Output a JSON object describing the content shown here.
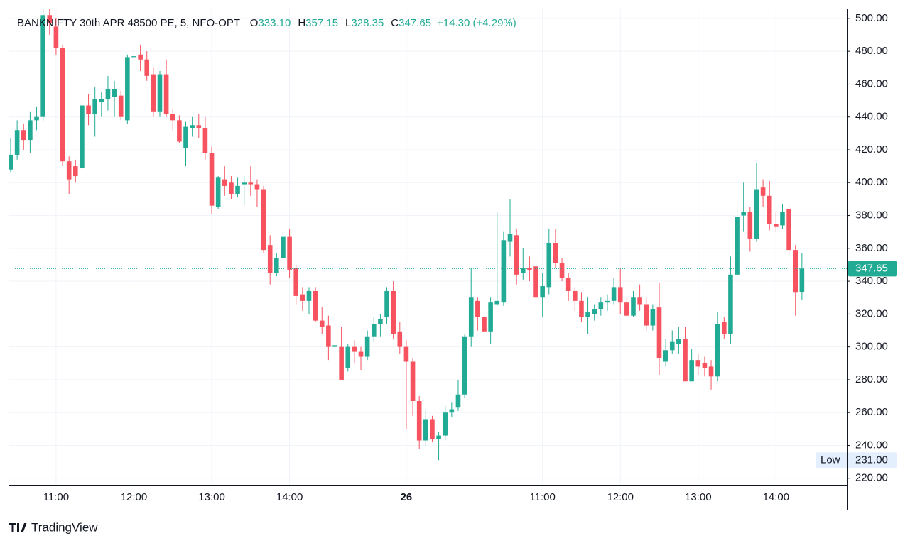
{
  "chart_data": {
    "type": "candlestick",
    "header": {
      "symbol": "BANKNIFTY 30th APR 48500 PE, 5, NFO-OPT",
      "ohlc": [
        {
          "key": "O",
          "value": "333.10"
        },
        {
          "key": "H",
          "value": "357.15"
        },
        {
          "key": "L",
          "value": "328.35"
        },
        {
          "key": "C",
          "value": "347.65"
        }
      ],
      "change": "+14.30 (+4.29%)"
    },
    "branding": "TradingView",
    "up_color": "#22ab94",
    "down_color": "#f7525f",
    "grid": true,
    "ylim": [
      216,
      506
    ],
    "yticks": [
      {
        "value": 220,
        "label": "220.00"
      },
      {
        "value": 240,
        "label": "240.00"
      },
      {
        "value": 260,
        "label": "260.00"
      },
      {
        "value": 280,
        "label": "280.00"
      },
      {
        "value": 300,
        "label": "300.00"
      },
      {
        "value": 320,
        "label": "320.00"
      },
      {
        "value": 340,
        "label": "340.00"
      },
      {
        "value": 360,
        "label": "360.00"
      },
      {
        "value": 380,
        "label": "380.00"
      },
      {
        "value": 400,
        "label": "400.00"
      },
      {
        "value": 420,
        "label": "420.00"
      },
      {
        "value": 440,
        "label": "440.00"
      },
      {
        "value": 460,
        "label": "460.00"
      },
      {
        "value": 480,
        "label": "480.00"
      },
      {
        "value": 500,
        "label": "500.00"
      }
    ],
    "last_price": {
      "value": 347.65,
      "label": "347.65"
    },
    "low_marker": {
      "name": "Low",
      "value": 231,
      "label": "231.00"
    },
    "categories": [
      null,
      null,
      null,
      null,
      null,
      null,
      null,
      "11:00",
      null,
      null,
      null,
      null,
      null,
      null,
      null,
      null,
      null,
      null,
      null,
      "12:00",
      null,
      null,
      null,
      null,
      null,
      null,
      null,
      null,
      null,
      null,
      null,
      "13:00",
      null,
      null,
      null,
      null,
      null,
      null,
      null,
      null,
      null,
      null,
      null,
      "14:00",
      null,
      null,
      null,
      null,
      null,
      null,
      null,
      null,
      null,
      null,
      null,
      null,
      null,
      null,
      null,
      null,
      null,
      "26",
      null,
      null,
      null,
      null,
      null,
      null,
      null,
      null,
      null,
      null,
      null,
      null,
      null,
      null,
      null,
      null,
      null,
      null,
      null,
      null,
      "11:00",
      null,
      null,
      null,
      null,
      null,
      null,
      null,
      null,
      null,
      null,
      null,
      "12:00",
      null,
      null,
      null,
      null,
      null,
      null,
      null,
      null,
      null,
      null,
      null,
      "13:00",
      null,
      null,
      null,
      null,
      null,
      null,
      null,
      null,
      null,
      null,
      null,
      "14:00",
      null,
      null,
      null,
      null
    ],
    "open": [
      408,
      417,
      432,
      426,
      438,
      440,
      502,
      495,
      482,
      413,
      410,
      409,
      447,
      442,
      449,
      451,
      452,
      453,
      438,
      476,
      478,
      475,
      466,
      443,
      466,
      442,
      438,
      421,
      433,
      435,
      433,
      418,
      385,
      402,
      400,
      393,
      399,
      400,
      399,
      396,
      362,
      345,
      354,
      367,
      348,
      332,
      328,
      334,
      316,
      313,
      300,
      300,
      287,
      300,
      297,
      294,
      306,
      314,
      318,
      334,
      309,
      300,
      291,
      267,
      243,
      256,
      244,
      246,
      260,
      263,
      271,
      306,
      328,
      318,
      309,
      326,
      327,
      364,
      368,
      345,
      348,
      349,
      330,
      336,
      363,
      351,
      342,
      334,
      328,
      318,
      320,
      323,
      327,
      328,
      336,
      327,
      319,
      330,
      326,
      313,
      324,
      291,
      298,
      302,
      305,
      279,
      292,
      290,
      288,
      282,
      315,
      308,
      344,
      380,
      382,
      366,
      397,
      392,
      375,
      374,
      384,
      359,
      333.1
    ],
    "high": [
      427,
      438,
      436,
      443,
      446,
      512,
      512,
      500,
      484,
      416,
      414,
      450,
      454,
      458,
      455,
      465,
      462,
      456,
      478,
      483,
      484,
      480,
      470,
      468,
      475,
      445,
      441,
      437,
      440,
      442,
      440,
      422,
      404,
      410,
      404,
      403,
      404,
      410,
      402,
      398,
      368,
      357,
      370,
      372,
      350,
      336,
      336,
      336,
      324,
      319,
      304,
      312,
      302,
      304,
      300,
      310,
      318,
      320,
      336,
      340,
      315,
      304,
      293,
      270,
      262,
      258,
      248,
      264,
      266,
      280,
      308,
      348,
      330,
      320,
      330,
      382,
      370,
      390,
      372,
      360,
      355,
      352,
      345,
      372,
      372,
      354,
      345,
      336,
      333,
      330,
      326,
      330,
      332,
      342,
      348,
      330,
      334,
      338,
      330,
      326,
      339,
      305,
      310,
      312,
      312,
      299,
      296,
      294,
      292,
      321,
      318,
      355,
      385,
      400,
      385,
      412,
      402,
      401,
      382,
      387,
      386,
      362,
      357.15
    ],
    "low": [
      406,
      414,
      420,
      418,
      432,
      437,
      490,
      478,
      410,
      393,
      400,
      408,
      435,
      428,
      440,
      444,
      440,
      438,
      436,
      470,
      468,
      462,
      440,
      440,
      440,
      432,
      424,
      410,
      428,
      427,
      414,
      381,
      384,
      392,
      390,
      391,
      386,
      392,
      385,
      357,
      338,
      343,
      350,
      342,
      326,
      322,
      320,
      315,
      308,
      292,
      292,
      280,
      285,
      290,
      286,
      292,
      303,
      306,
      314,
      305,
      296,
      250,
      258,
      238,
      240,
      242,
      231,
      243,
      257,
      261,
      269,
      300,
      310,
      286,
      302,
      325,
      325,
      355,
      338,
      341,
      340,
      325,
      318,
      332,
      348,
      340,
      328,
      322,
      315,
      308,
      316,
      319,
      322,
      326,
      320,
      318,
      318,
      322,
      310,
      310,
      283,
      288,
      296,
      296,
      279,
      279,
      283,
      282,
      274,
      279,
      305,
      302,
      343,
      370,
      358,
      364,
      385,
      371,
      370,
      372,
      356,
      319,
      328.35
    ],
    "close": [
      417,
      432,
      426,
      438,
      440,
      502,
      497,
      482,
      413,
      402,
      404,
      447,
      442,
      451,
      451,
      457,
      457,
      440,
      476,
      477,
      475,
      465,
      443,
      466,
      442,
      438,
      425,
      434,
      435,
      433,
      418,
      386,
      403,
      398,
      393,
      398,
      400,
      399,
      396,
      359,
      345,
      354,
      367,
      347,
      331,
      328,
      334,
      316,
      312,
      300,
      301,
      280,
      300,
      297,
      294,
      306,
      314,
      317,
      334,
      308,
      300,
      291,
      267,
      243,
      256,
      244,
      246,
      260,
      262,
      271,
      306,
      330,
      318,
      309,
      327,
      328,
      365,
      369,
      344,
      348,
      347,
      330,
      337,
      363,
      351,
      342,
      334,
      328,
      318,
      321,
      323,
      327,
      328,
      336,
      327,
      319,
      330,
      326,
      313,
      323,
      293,
      298,
      303,
      305,
      279,
      292,
      288,
      287,
      282,
      314,
      308,
      344,
      379,
      382,
      366,
      396,
      392,
      375,
      373,
      382,
      359,
      333,
      347.65
    ]
  }
}
